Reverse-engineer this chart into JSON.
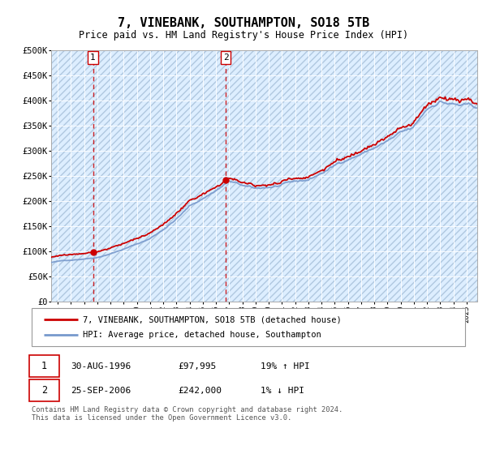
{
  "title": "7, VINEBANK, SOUTHAMPTON, SO18 5TB",
  "subtitle": "Price paid vs. HM Land Registry's House Price Index (HPI)",
  "legend_line1": "7, VINEBANK, SOUTHAMPTON, SO18 5TB (detached house)",
  "legend_line2": "HPI: Average price, detached house, Southampton",
  "sale1_label": "1",
  "sale1_date": "30-AUG-1996",
  "sale1_price": "£97,995",
  "sale1_hpi": "19% ↑ HPI",
  "sale2_label": "2",
  "sale2_date": "25-SEP-2006",
  "sale2_price": "£242,000",
  "sale2_hpi": "1% ↓ HPI",
  "footer": "Contains HM Land Registry data © Crown copyright and database right 2024.\nThis data is licensed under the Open Government Licence v3.0.",
  "sale1_year": 1996.67,
  "sale2_year": 2006.73,
  "sale1_value": 97995,
  "sale2_value": 242000,
  "red_color": "#cc0000",
  "blue_color": "#7799cc",
  "background_plot": "#ddeeff",
  "grid_color": "#ffffff",
  "ylim": [
    0,
    500000
  ],
  "xlim_start": 1993.5,
  "xlim_end": 2025.8,
  "xticks": [
    1994,
    1995,
    1996,
    1997,
    1998,
    1999,
    2000,
    2001,
    2002,
    2003,
    2004,
    2005,
    2006,
    2007,
    2008,
    2009,
    2010,
    2011,
    2012,
    2013,
    2014,
    2015,
    2016,
    2017,
    2018,
    2019,
    2020,
    2021,
    2022,
    2023,
    2024,
    2025
  ],
  "ytick_values": [
    0,
    50000,
    100000,
    150000,
    200000,
    250000,
    300000,
    350000,
    400000,
    450000,
    500000
  ]
}
